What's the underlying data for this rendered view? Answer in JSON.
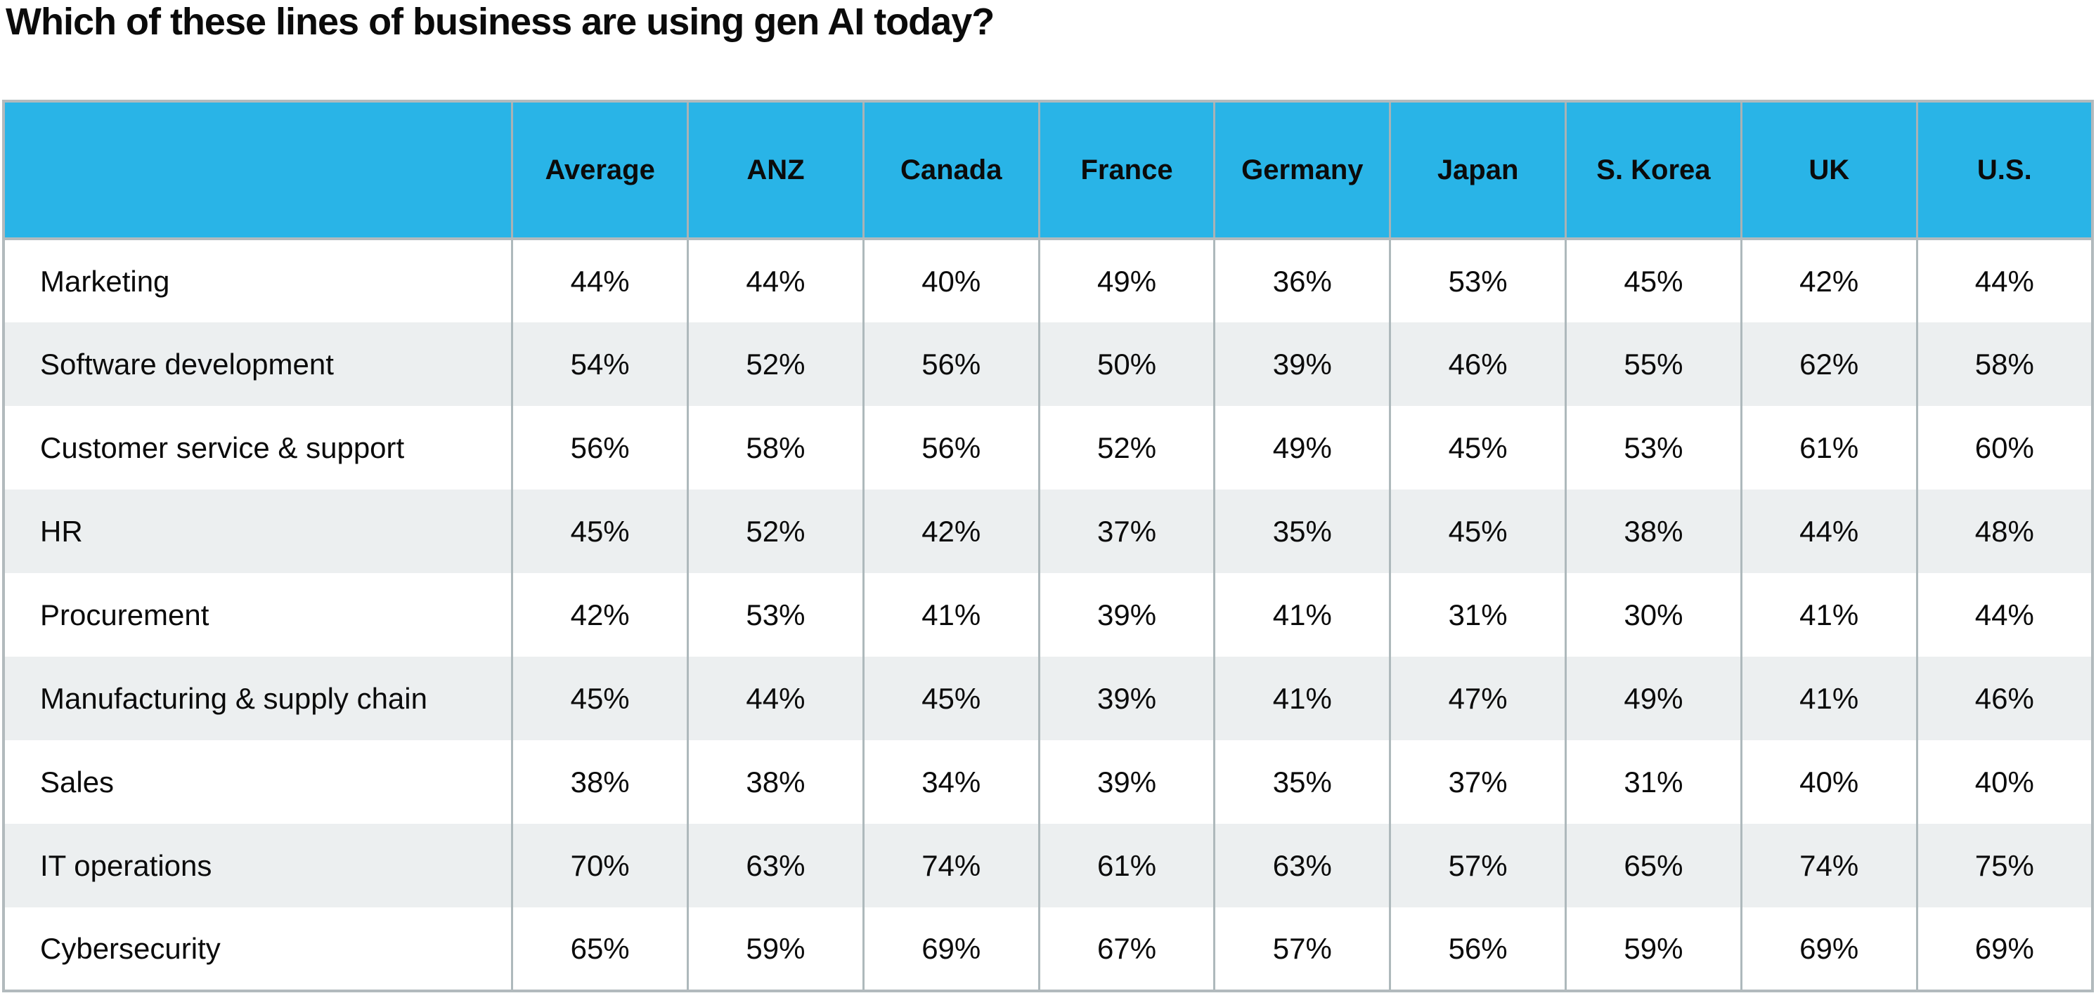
{
  "title": "Which of these lines of business are using gen AI today?",
  "colors": {
    "header_bg": "#29B4E7",
    "row_alt_bg": "#ECEFF0",
    "row_bg": "#FFFFFF",
    "grid_line": "#A9B2B5",
    "outer_border": "#B2BABD",
    "text": "#0B0B0B"
  },
  "table": {
    "columns": [
      "",
      "Average",
      "ANZ",
      "Canada",
      "France",
      "Germany",
      "Japan",
      "S. Korea",
      "UK",
      "U.S."
    ],
    "rows": [
      {
        "label": "Marketing",
        "values": [
          "44%",
          "44%",
          "40%",
          "49%",
          "36%",
          "53%",
          "45%",
          "42%",
          "44%"
        ]
      },
      {
        "label": "Software development",
        "values": [
          "54%",
          "52%",
          "56%",
          "50%",
          "39%",
          "46%",
          "55%",
          "62%",
          "58%"
        ]
      },
      {
        "label": "Customer service & support",
        "values": [
          "56%",
          "58%",
          "56%",
          "52%",
          "49%",
          "45%",
          "53%",
          "61%",
          "60%"
        ]
      },
      {
        "label": "HR",
        "values": [
          "45%",
          "52%",
          "42%",
          "37%",
          "35%",
          "45%",
          "38%",
          "44%",
          "48%"
        ]
      },
      {
        "label": "Procurement",
        "values": [
          "42%",
          "53%",
          "41%",
          "39%",
          "41%",
          "31%",
          "30%",
          "41%",
          "44%"
        ]
      },
      {
        "label": "Manufacturing & supply chain",
        "values": [
          "45%",
          "44%",
          "45%",
          "39%",
          "41%",
          "47%",
          "49%",
          "41%",
          "46%"
        ]
      },
      {
        "label": "Sales",
        "values": [
          "38%",
          "38%",
          "34%",
          "39%",
          "35%",
          "37%",
          "31%",
          "40%",
          "40%"
        ]
      },
      {
        "label": "IT operations",
        "values": [
          "70%",
          "63%",
          "74%",
          "61%",
          "63%",
          "57%",
          "65%",
          "74%",
          "75%"
        ]
      },
      {
        "label": "Cybersecurity",
        "values": [
          "65%",
          "59%",
          "69%",
          "67%",
          "57%",
          "56%",
          "59%",
          "69%",
          "69%"
        ]
      }
    ]
  },
  "chart_data": {
    "type": "table",
    "title": "Which of these lines of business are using gen AI today?",
    "columns": [
      "Average",
      "ANZ",
      "Canada",
      "France",
      "Germany",
      "Japan",
      "S. Korea",
      "UK",
      "U.S."
    ],
    "row_labels": [
      "Marketing",
      "Software development",
      "Customer service & support",
      "HR",
      "Procurement",
      "Manufacturing & supply chain",
      "Sales",
      "IT operations",
      "Cybersecurity"
    ],
    "values_percent": [
      [
        44,
        44,
        40,
        49,
        36,
        53,
        45,
        42,
        44
      ],
      [
        54,
        52,
        56,
        50,
        39,
        46,
        55,
        62,
        58
      ],
      [
        56,
        58,
        56,
        52,
        49,
        45,
        53,
        61,
        60
      ],
      [
        45,
        52,
        42,
        37,
        35,
        45,
        38,
        44,
        48
      ],
      [
        42,
        53,
        41,
        39,
        41,
        31,
        30,
        41,
        44
      ],
      [
        45,
        44,
        45,
        39,
        41,
        47,
        49,
        41,
        46
      ],
      [
        38,
        38,
        34,
        39,
        35,
        37,
        31,
        40,
        40
      ],
      [
        70,
        63,
        74,
        61,
        63,
        57,
        65,
        74,
        75
      ],
      [
        65,
        59,
        69,
        67,
        57,
        56,
        59,
        69,
        69
      ]
    ],
    "unit": "%",
    "layout": {
      "header_fill": "#29B4E7",
      "zebra_striping": true,
      "grid": "vertical-only",
      "value_alignment": "center"
    }
  }
}
